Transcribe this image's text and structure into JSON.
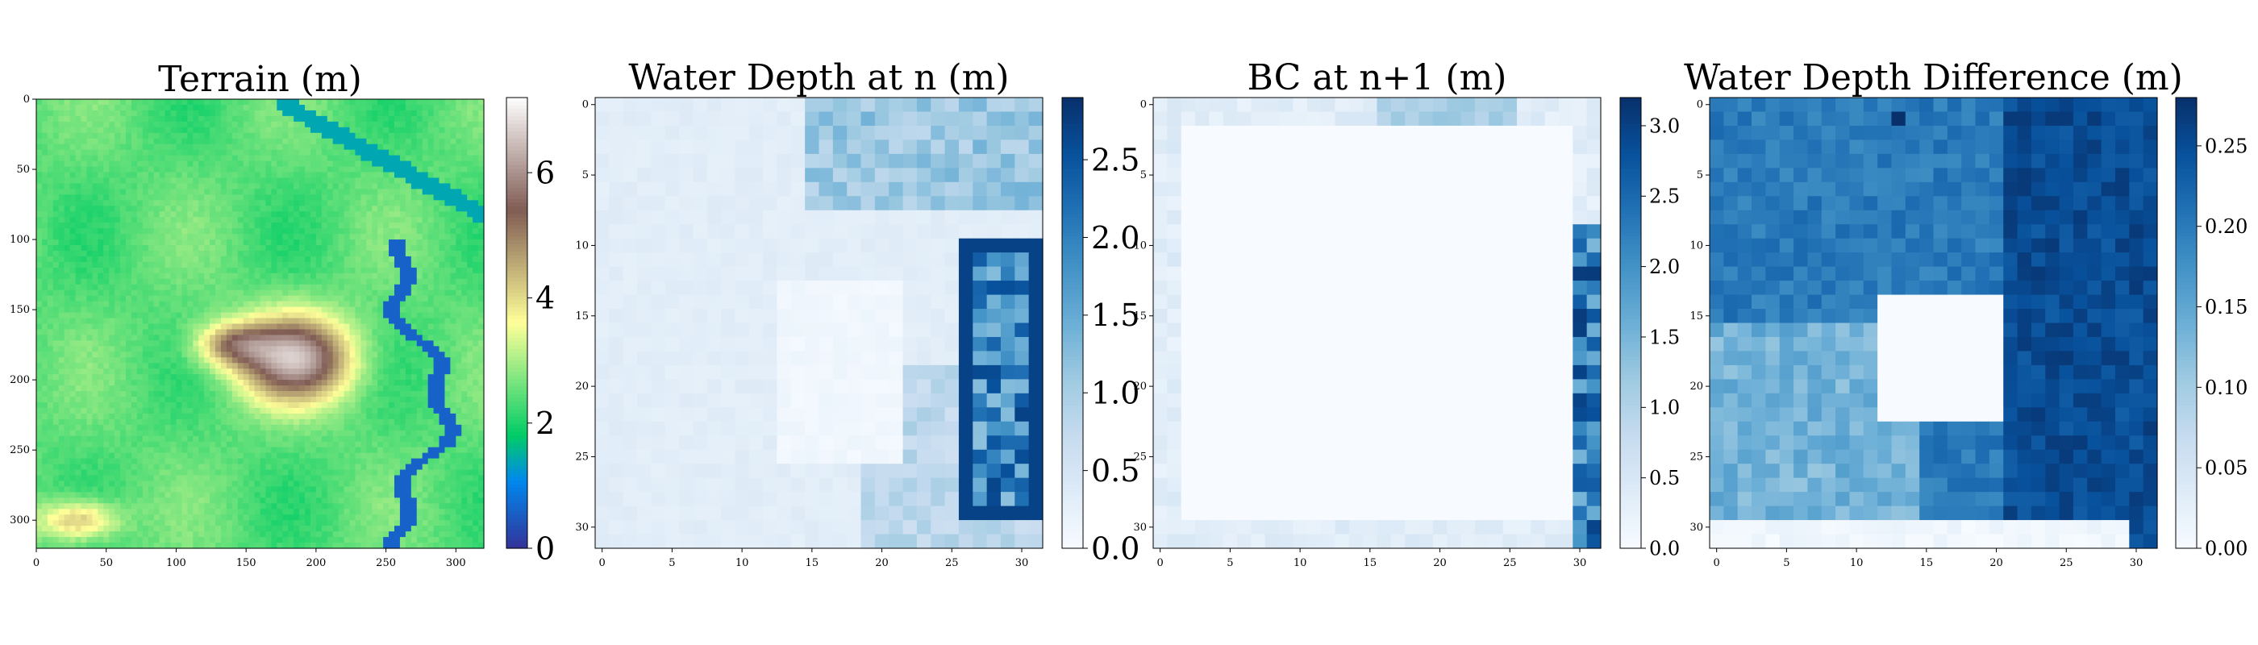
{
  "colors": {
    "terrain": [
      "#333399",
      "#0088ee",
      "#00cc66",
      "#ffff99",
      "#805c54",
      "#ffffff"
    ],
    "blues": [
      "#f7fbff",
      "#deebf7",
      "#c6dbef",
      "#9ecae1",
      "#6baed6",
      "#4292c6",
      "#2171b5",
      "#08519c",
      "#08306b"
    ]
  },
  "chart_data": [
    {
      "type": "heatmap",
      "title": "Terrain (m)",
      "colormap": "terrain",
      "grid": false,
      "xlim": [
        0,
        320
      ],
      "ylim": [
        320,
        0
      ],
      "xticks": [
        0,
        50,
        100,
        150,
        200,
        250,
        300
      ],
      "yticks": [
        0,
        50,
        100,
        150,
        200,
        250,
        300
      ],
      "colorbar": {
        "range": [
          0,
          7.2
        ],
        "ticks": [
          0,
          2,
          4,
          6
        ]
      },
      "features": {
        "background_level": 2.3,
        "hill": {
          "center": [
            185,
            185
          ],
          "peak": 6.6
        },
        "river_right_level": 0.6,
        "channel_top_level": 1.4
      }
    },
    {
      "type": "heatmap",
      "title": "Water Depth at n (m)",
      "colormap": "Blues",
      "grid": false,
      "xlim": [
        0,
        31
      ],
      "ylim": [
        31,
        0
      ],
      "xticks": [
        0,
        5,
        10,
        15,
        20,
        25,
        30
      ],
      "yticks": [
        0,
        5,
        10,
        15,
        20,
        25,
        30
      ],
      "colorbar": {
        "range": [
          0,
          2.9
        ],
        "ticks": [
          0.0,
          0.5,
          1.0,
          1.5,
          2.0,
          2.5
        ]
      }
    },
    {
      "type": "heatmap",
      "title": "BC at n+1 (m)",
      "colormap": "Blues",
      "grid": false,
      "xlim": [
        0,
        31
      ],
      "ylim": [
        31,
        0
      ],
      "xticks": [
        0,
        5,
        10,
        15,
        20,
        25,
        30
      ],
      "yticks": [
        0,
        5,
        10,
        15,
        20,
        25,
        30
      ],
      "interior_value": 0,
      "colorbar": {
        "range": [
          0,
          3.2
        ],
        "ticks": [
          0.0,
          0.5,
          1.0,
          1.5,
          2.0,
          2.5,
          3.0
        ]
      }
    },
    {
      "type": "heatmap",
      "title": "Water Depth Difference (m)",
      "colormap": "Blues",
      "grid": false,
      "xlim": [
        0,
        31
      ],
      "ylim": [
        31,
        0
      ],
      "xticks": [
        0,
        5,
        10,
        15,
        20,
        25,
        30
      ],
      "yticks": [
        0,
        5,
        10,
        15,
        20,
        25,
        30
      ],
      "colorbar": {
        "range": [
          0,
          0.28
        ],
        "ticks": [
          0.0,
          0.05,
          0.1,
          0.15,
          0.2,
          0.25
        ],
        "tick_labels": [
          "0.00",
          "0.05",
          "0.10",
          "0.15",
          "0.20",
          "0.25"
        ]
      }
    }
  ]
}
